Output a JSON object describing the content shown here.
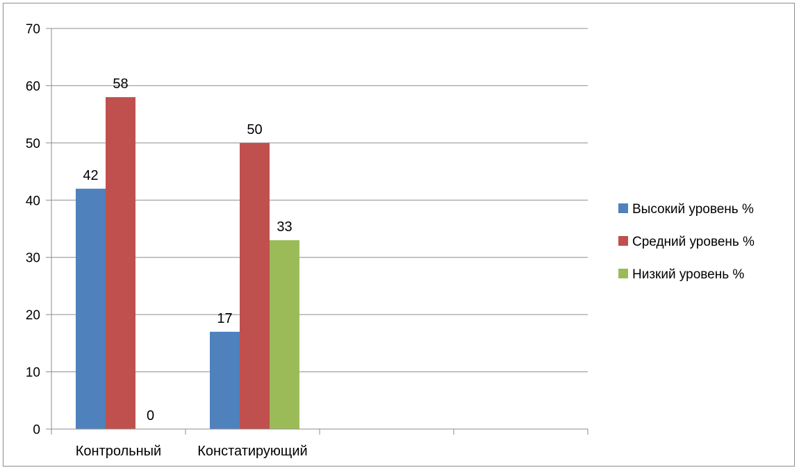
{
  "chart_data": {
    "type": "bar",
    "title": "",
    "xlabel": "",
    "ylabel": "",
    "ylim": [
      0,
      70
    ],
    "yticks": [
      0,
      10,
      20,
      30,
      40,
      50,
      60,
      70
    ],
    "categories": [
      "Контрольный",
      "Констатирующий",
      "",
      ""
    ],
    "series": [
      {
        "name": "Высокий уровень %",
        "color": "#4f81bd",
        "values": [
          42,
          17,
          null,
          null
        ]
      },
      {
        "name": "Средний уровень %",
        "color": "#c0504d",
        "values": [
          58,
          50,
          null,
          null
        ]
      },
      {
        "name": "Низкий уровень %",
        "color": "#9bbb59",
        "values": [
          0,
          33,
          null,
          null
        ]
      }
    ],
    "data_labels": true,
    "grid": true,
    "legend_position": "right"
  }
}
